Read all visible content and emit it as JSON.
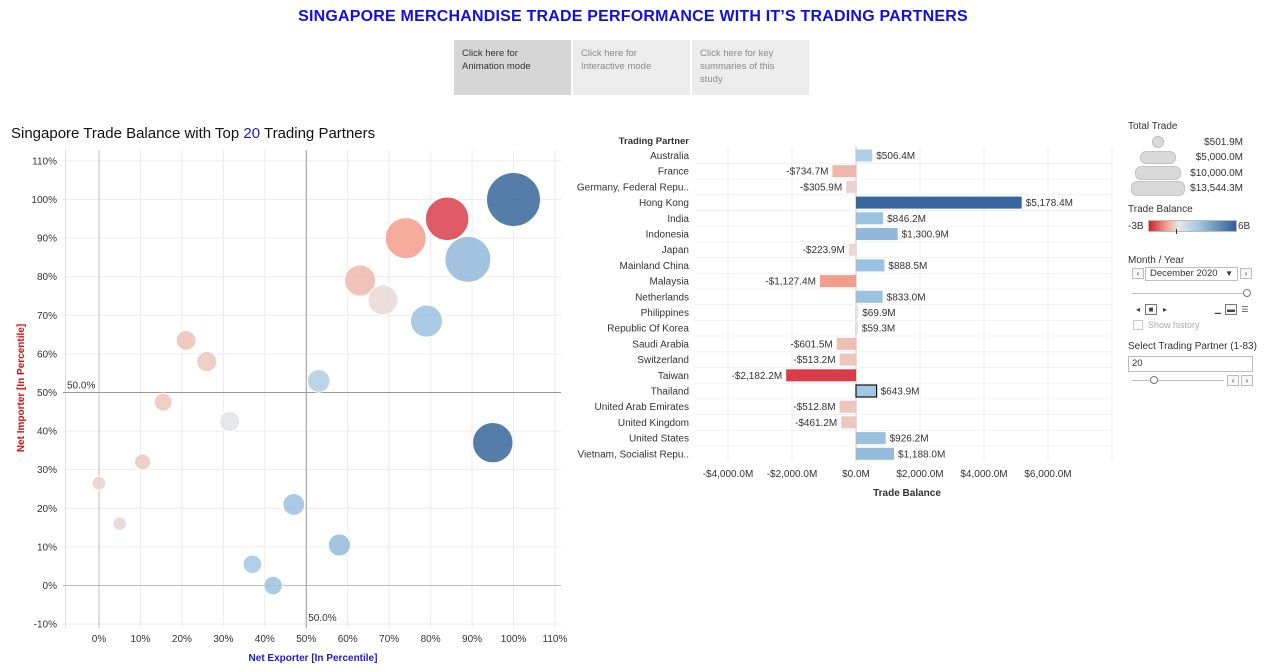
{
  "title": "SINGAPORE MERCHANDISE TRADE PERFORMANCE WITH IT’S TRADING PARTNERS",
  "modes": [
    {
      "label_line1": "Click here for",
      "label_line2": "Animation mode",
      "label_line3": ""
    },
    {
      "label_line1": "Click here for",
      "label_line2": "Interactive mode",
      "label_line3": ""
    },
    {
      "label_line1": "Click here for key",
      "label_line2": "summaries of this",
      "label_line3": "study"
    }
  ],
  "subtitle": {
    "prefix": "Singapore Trade Balance with Top ",
    "count": "20",
    "suffix": " Trading Partners"
  },
  "chart_data": [
    {
      "type": "scatter",
      "title": "Singapore Trade Balance with Top 20 Trading Partners",
      "xlabel": "Net Exporter [In Percentile]",
      "ylabel": "Net Importer  [In Percentile]",
      "xlim": [
        -0.1,
        1.1
      ],
      "ylim": [
        -0.1,
        1.1
      ],
      "xticks": [
        "0%",
        "10%",
        "20%",
        "30%",
        "40%",
        "50%",
        "60%",
        "70%",
        "80%",
        "90%",
        "100%",
        "110%"
      ],
      "yticks": [
        "-10%",
        "0%",
        "10%",
        "20%",
        "30%",
        "40%",
        "50%",
        "60%",
        "70%",
        "80%",
        "90%",
        "100%",
        "110%"
      ],
      "reference_lines": {
        "x": 0.5,
        "y": 0.5,
        "x_label": "50.0%",
        "y_label": "50.0%"
      },
      "size_by": "total_trade",
      "color_by": "trade_balance",
      "points": [
        {
          "x": 1.0,
          "y": 1.0,
          "size": 13544,
          "balance": 5178.4
        },
        {
          "x": 0.84,
          "y": 0.95,
          "size": 8800,
          "balance": -2182.2
        },
        {
          "x": 0.74,
          "y": 0.9,
          "size": 7800,
          "balance": -1127.4
        },
        {
          "x": 0.89,
          "y": 0.845,
          "size": 9800,
          "balance": 1300.9
        },
        {
          "x": 0.63,
          "y": 0.79,
          "size": 4500,
          "balance": -734.7
        },
        {
          "x": 0.685,
          "y": 0.74,
          "size": 4200,
          "balance": -223.9
        },
        {
          "x": 0.79,
          "y": 0.685,
          "size": 4800,
          "balance": 888.5
        },
        {
          "x": 0.95,
          "y": 0.37,
          "size": 7600,
          "balance": 5178.4
        },
        {
          "x": 0.21,
          "y": 0.635,
          "size": 1800,
          "balance": -601.5
        },
        {
          "x": 0.26,
          "y": 0.58,
          "size": 1900,
          "balance": -513.2
        },
        {
          "x": 0.53,
          "y": 0.53,
          "size": 2400,
          "balance": 506.4
        },
        {
          "x": 0.155,
          "y": 0.475,
          "size": 1500,
          "balance": -512.8
        },
        {
          "x": 0.315,
          "y": 0.425,
          "size": 1900,
          "balance": 59.3
        },
        {
          "x": 0.105,
          "y": 0.32,
          "size": 1200,
          "balance": -461.2
        },
        {
          "x": 0.0,
          "y": 0.265,
          "size": 900,
          "balance": -305.9
        },
        {
          "x": 0.05,
          "y": 0.16,
          "size": 850,
          "balance": -305.9
        },
        {
          "x": 0.47,
          "y": 0.21,
          "size": 2200,
          "balance": 926.2
        },
        {
          "x": 0.58,
          "y": 0.105,
          "size": 2300,
          "balance": 1188.0
        },
        {
          "x": 0.37,
          "y": 0.055,
          "size": 1600,
          "balance": 643.9
        },
        {
          "x": 0.42,
          "y": 0.0,
          "size": 1600,
          "balance": 833.0
        }
      ]
    },
    {
      "type": "bar",
      "orientation": "horizontal",
      "category_header": "Trading Partner",
      "xlabel": "Trade Balance",
      "xlim": [
        -4500,
        8000
      ],
      "xticks": [
        {
          "value": -4000,
          "label": "-$4,000.0M"
        },
        {
          "value": -2000,
          "label": "-$2,000.0M"
        },
        {
          "value": 0,
          "label": "$0.0M"
        },
        {
          "value": 2000,
          "label": "$2,000.0M"
        },
        {
          "value": 4000,
          "label": "$4,000.0M"
        },
        {
          "value": 6000,
          "label": "$6,000.0M"
        }
      ],
      "highlighted": "Thailand",
      "categories": [
        "Australia",
        "France",
        "Germany, Federal Repu..",
        "Hong Kong",
        "India",
        "Indonesia",
        "Japan",
        "Mainland China",
        "Malaysia",
        "Netherlands",
        "Philippines",
        "Republic Of Korea",
        "Saudi Arabia",
        "Switzerland",
        "Taiwan",
        "Thailand",
        "United Arab Emirates",
        "United Kingdom",
        "United States",
        "Vietnam, Socialist Repu.."
      ],
      "values": [
        506.4,
        -734.7,
        -305.9,
        5178.4,
        846.2,
        1300.9,
        -223.9,
        888.5,
        -1127.4,
        833.0,
        69.9,
        59.3,
        -601.5,
        -513.2,
        -2182.2,
        643.9,
        -512.8,
        -461.2,
        926.2,
        1188.0
      ],
      "labels": [
        "$506.4M",
        "-$734.7M",
        "-$305.9M",
        "$5,178.4M",
        "$846.2M",
        "$1,300.9M",
        "-$223.9M",
        "$888.5M",
        "-$1,127.4M",
        "$833.0M",
        "$69.9M",
        "$59.3M",
        "-$601.5M",
        "-$513.2M",
        "-$2,182.2M",
        "$643.9M",
        "-$512.8M",
        "-$461.2M",
        "$926.2M",
        "$1,188.0M"
      ]
    }
  ],
  "legend": {
    "total_trade": {
      "title": "Total Trade",
      "values": [
        "$501.9M",
        "$5,000.0M",
        "$10,000.0M",
        "$13,544.3M"
      ]
    },
    "trade_balance": {
      "title": "Trade Balance",
      "min_label": "-3B",
      "max_label": "6B",
      "color_low": "#cf1f36",
      "color_mid": "#e6e6e6",
      "color_high": "#2e5f96"
    }
  },
  "controls": {
    "month_year": {
      "title": "Month / Year",
      "value": "December 2020"
    },
    "show_history": "Show history",
    "trading_partner": {
      "title": "Select Trading Partner (1-83)",
      "value": "20"
    }
  }
}
